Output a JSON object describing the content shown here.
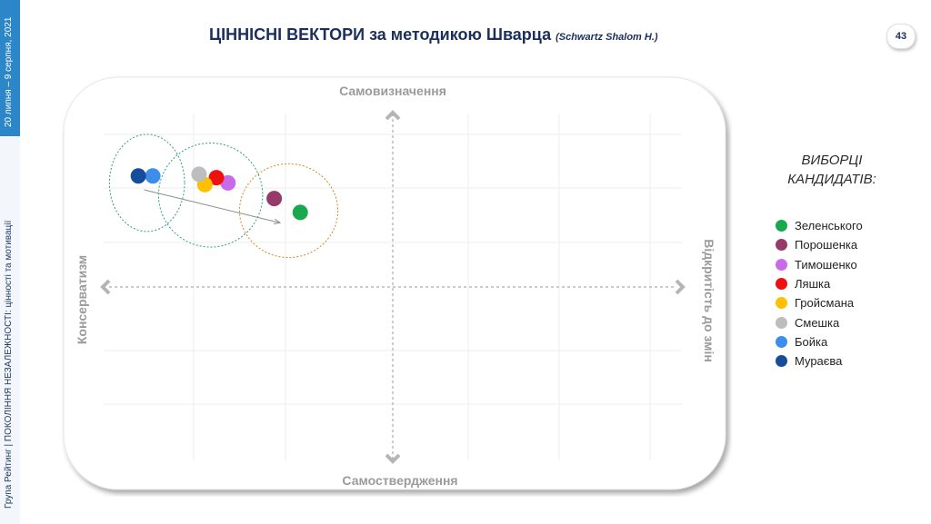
{
  "sidebar": {
    "date": "20 липня – 9 серпня, 2021",
    "org": "Група Рейтинг | ПОКОЛІННЯ НЕЗАЛЕЖНОСТІ: цінності та мотивації"
  },
  "header": {
    "title": "ЦІННІСНІ ВЕКТОРИ за методикою Шварца",
    "subtitle": "(Schwartz Shalom H.)",
    "page_number": "43"
  },
  "legend_title_lines": [
    "ВИБОРЦІ",
    "КАНДИДАТІВ:"
  ],
  "chart_data": {
    "type": "scatter",
    "axis_labels": {
      "top": "Самовизначення",
      "bottom": "Самоствердження",
      "left": "Консерватизм",
      "right": "Відкритість до змін"
    },
    "xlim": [
      -1,
      1
    ],
    "ylim": [
      -1,
      1
    ],
    "grid": true,
    "legend_position": "right",
    "series": [
      {
        "name": "Зеленського",
        "color": "#1aa84e",
        "x": -0.32,
        "y": 0.43
      },
      {
        "name": "Порошенка",
        "color": "#963a6a",
        "x": -0.41,
        "y": 0.51
      },
      {
        "name": "Тимошенко",
        "color": "#c96ae8",
        "x": -0.57,
        "y": 0.6
      },
      {
        "name": "Ляшка",
        "color": "#ee1111",
        "x": -0.61,
        "y": 0.63
      },
      {
        "name": "Гройсмана",
        "color": "#ffc000",
        "x": -0.65,
        "y": 0.59
      },
      {
        "name": "Смешка",
        "color": "#bdbdbd",
        "x": -0.67,
        "y": 0.65
      },
      {
        "name": "Бойка",
        "color": "#3d8ee8",
        "x": -0.83,
        "y": 0.64
      },
      {
        "name": "Мураєва",
        "color": "#164c9a",
        "x": -0.88,
        "y": 0.64
      }
    ],
    "trend_arrow": {
      "from": [
        -0.86,
        0.56
      ],
      "to": [
        -0.39,
        0.37
      ]
    },
    "clusters": [
      {
        "center": [
          -0.85,
          0.6
        ],
        "radius": [
          0.13,
          0.28
        ],
        "color": "#2e9e86"
      },
      {
        "center": [
          -0.63,
          0.53
        ],
        "radius": [
          0.18,
          0.3
        ],
        "color": "#2e9e86"
      },
      {
        "center": [
          -0.36,
          0.44
        ],
        "radius": [
          0.17,
          0.27
        ],
        "color": "#d08a1c"
      }
    ]
  }
}
